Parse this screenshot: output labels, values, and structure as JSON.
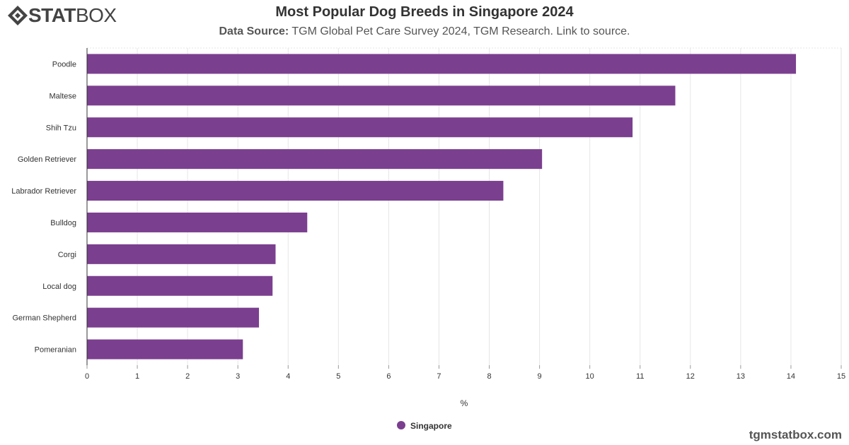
{
  "header": {
    "logo_bold": "STAT",
    "logo_light": "BOX",
    "title": "Most Popular Dog Breeds in Singapore 2024",
    "subtitle_label": "Data Source:",
    "subtitle_text": " TGM Global Pet Care Survey 2024, TGM Research. Link to source."
  },
  "watermark": "tgmstatbox.com",
  "colors": {
    "bar": "#7b3f8f",
    "grid": "#e6e6e6",
    "axis": "#333333",
    "text": "#333333"
  },
  "chart_data": {
    "type": "bar",
    "orientation": "horizontal",
    "categories": [
      "Poodle",
      "Maltese",
      "Shih Tzu",
      "Golden Retriever",
      "Labrador Retriever",
      "Bulldog",
      "Corgi",
      "Local dog",
      "German Shepherd",
      "Pomeranian"
    ],
    "series": [
      {
        "name": "Singapore",
        "values": [
          14.1,
          11.7,
          10.85,
          9.05,
          8.28,
          4.38,
          3.75,
          3.69,
          3.42,
          3.1
        ]
      }
    ],
    "xlabel": "%",
    "xlim": [
      0,
      15
    ],
    "xticks": [
      "0",
      "1",
      "2",
      "3",
      "4",
      "5",
      "6",
      "7",
      "8",
      "9",
      "10",
      "11",
      "12",
      "13",
      "14",
      "15"
    ],
    "grid": "vertical dotted",
    "legend": "bottom-center"
  }
}
